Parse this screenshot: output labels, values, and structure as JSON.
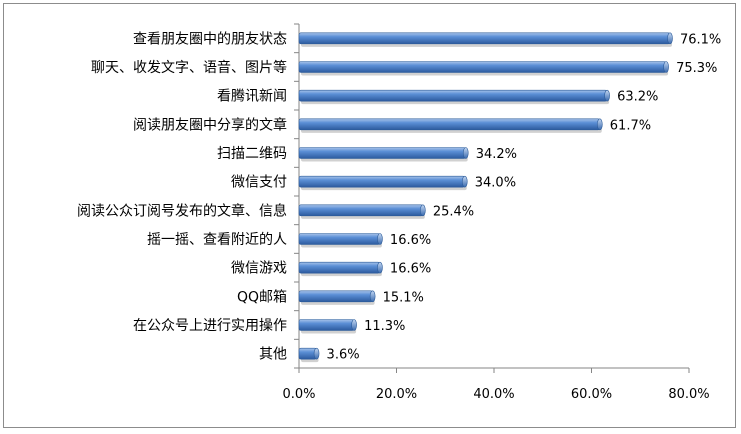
{
  "chart_data": {
    "type": "bar",
    "orientation": "horizontal",
    "title": "",
    "xlabel": "",
    "ylabel": "",
    "categories": [
      "查看朋友圈中的朋友状态",
      "聊天、收发文字、语音、图片等",
      "看腾讯新闻",
      "阅读朋友圈中分享的文章",
      "扫描二维码",
      "微信支付",
      "阅读公众订阅号发布的文章、信息",
      "摇一摇、查看附近的人",
      "微信游戏",
      "QQ邮箱",
      "在公众号上进行实用操作",
      "其他"
    ],
    "values": [
      76.1,
      75.3,
      63.2,
      61.7,
      34.2,
      34.0,
      25.4,
      16.6,
      16.6,
      15.1,
      11.3,
      3.6
    ],
    "data_labels": [
      "76.1%",
      "75.3%",
      "63.2%",
      "61.7%",
      "34.2%",
      "34.0%",
      "25.4%",
      "16.6%",
      "16.6%",
      "15.1%",
      "11.3%",
      "3.6%"
    ],
    "xlim": [
      0,
      80
    ],
    "x_ticks": [
      0,
      20,
      40,
      60,
      80
    ],
    "x_tick_labels": [
      "0.0%",
      "20.0%",
      "40.0%",
      "60.0%",
      "80.0%"
    ],
    "grid": false,
    "legend": "none",
    "bar_color": "#4f81bd"
  }
}
